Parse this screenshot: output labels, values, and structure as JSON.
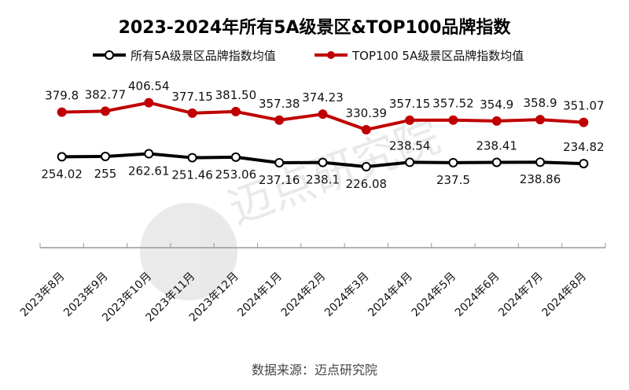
{
  "chart_data": {
    "type": "line",
    "title": "2023-2024年所有5A级景区&TOP100品牌指数",
    "categories": [
      "2023年8月",
      "2023年9月",
      "2023年10月",
      "2023年11月",
      "2023年12月",
      "2024年1月",
      "2024年2月",
      "2024年3月",
      "2024年4月",
      "2024年5月",
      "2024年6月",
      "2024年7月",
      "2024年8月"
    ],
    "series": [
      {
        "name": "所有5A级景区品牌指数均值",
        "color": "#000000",
        "marker_fill": "#ffffff",
        "values": [
          254.02,
          255,
          262.61,
          251.46,
          253.06,
          237.16,
          238.1,
          226.08,
          238.54,
          237.5,
          238.41,
          238.86,
          234.82
        ],
        "labels": [
          "254.02",
          "255",
          "262.61",
          "251.46",
          "253.06",
          "237.16",
          "238.1",
          "226.08",
          "238.54",
          "237.5",
          "238.41",
          "238.86",
          "234.82"
        ]
      },
      {
        "name": "TOP100 5A级景区品牌指数均值",
        "color": "#c00000",
        "marker_fill": "#c00000",
        "values": [
          379.8,
          382.77,
          406.54,
          377.15,
          381.5,
          357.38,
          374.23,
          330.39,
          357.15,
          357.52,
          354.9,
          358.9,
          351.07
        ],
        "labels": [
          "379.8",
          "382.77",
          "406.54",
          "377.15",
          "381.50",
          "357.38",
          "374.23",
          "330.39",
          "357.15",
          "357.52",
          "354.9",
          "358.9",
          "351.07"
        ]
      }
    ],
    "ylim": [
      0,
      450
    ],
    "grid": false,
    "legend": "top",
    "y_axis_visible": false
  },
  "source": "数据来源：迈点研究院",
  "watermark": {
    "text": "迈点研究院",
    "sub": "MEADIN ACADEMY"
  }
}
